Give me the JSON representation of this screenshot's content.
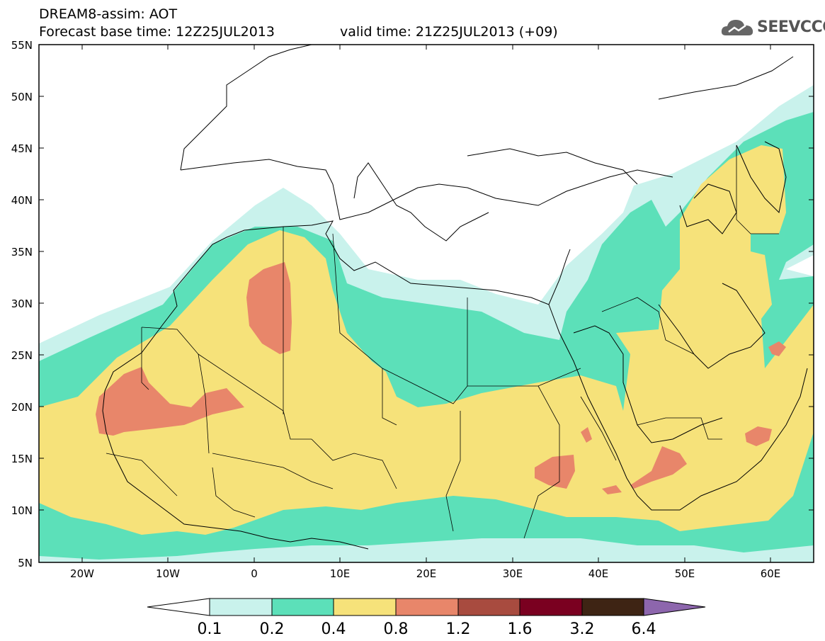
{
  "header": {
    "line1": "DREAM8-assim: AOT",
    "line2": "Forecast base time: 12Z25JUL2013",
    "valid": "valid time: 21Z25JUL2013 (+09)",
    "logo_text": "SEEVCCC"
  },
  "map": {
    "lat_labels": [
      "55N",
      "50N",
      "45N",
      "40N",
      "35N",
      "30N",
      "25N",
      "20N",
      "15N",
      "10N",
      "5N"
    ],
    "lon_labels": [
      "20W",
      "10W",
      "0",
      "10E",
      "20E",
      "30E",
      "40E",
      "50E",
      "60E"
    ]
  },
  "colorbar": {
    "labels": [
      "0.1",
      "0.2",
      "0.4",
      "0.8",
      "1.2",
      "1.6",
      "3.2",
      "6.4"
    ],
    "colors": {
      "c0": "#ffffff",
      "c1": "#c9f2ec",
      "c2": "#5ce0b9",
      "c3": "#f6e27a",
      "c4": "#e8866a",
      "c5": "#a84b3f",
      "c6": "#7a0020",
      "c7": "#3e2414",
      "c8": "#8d66ad"
    }
  }
}
